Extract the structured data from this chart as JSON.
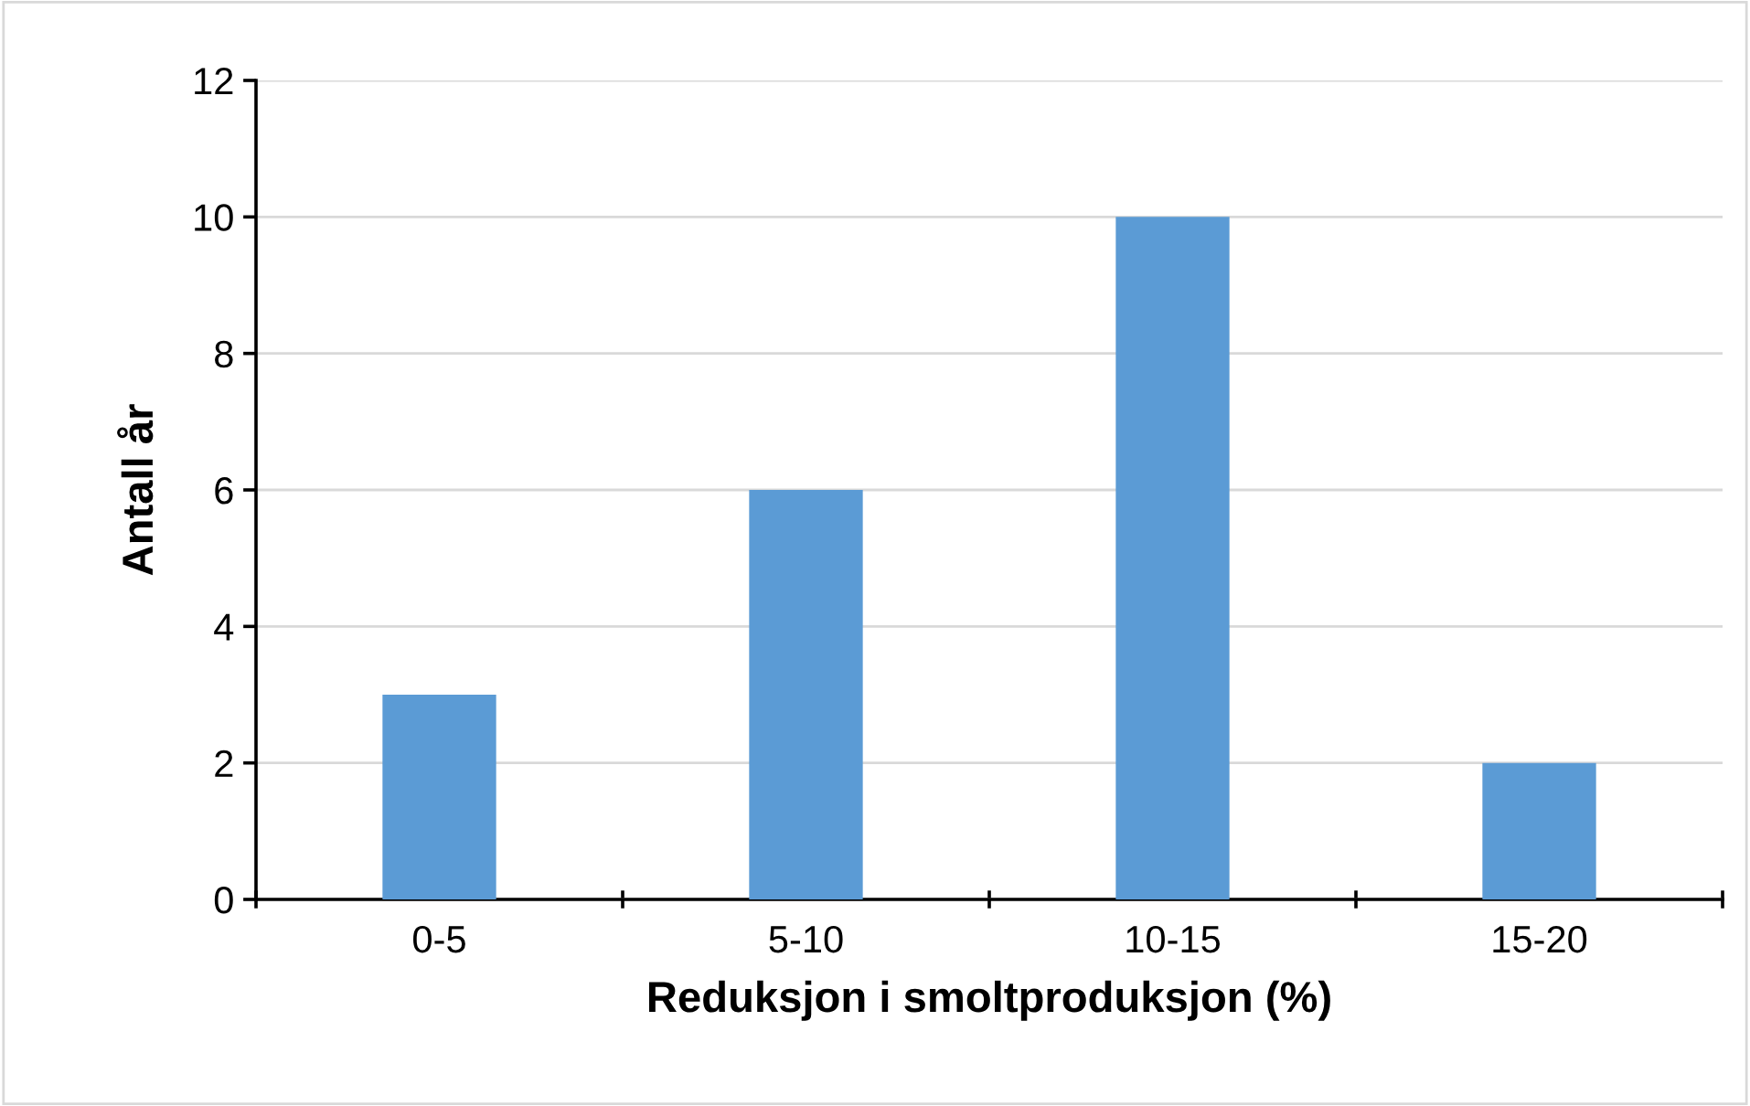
{
  "chart_data": {
    "type": "bar",
    "xlabel": "Reduksjon i smoltproduksjon (%)",
    "ylabel": "Antall år",
    "categories": [
      "0-5",
      "5-10",
      "10-15",
      "15-20"
    ],
    "values": [
      3,
      6,
      10,
      2
    ],
    "color": "#5b9bd5",
    "ylim": [
      0,
      12
    ],
    "yticks": [
      0,
      2,
      4,
      6,
      8,
      10,
      12
    ],
    "grid": "y"
  }
}
